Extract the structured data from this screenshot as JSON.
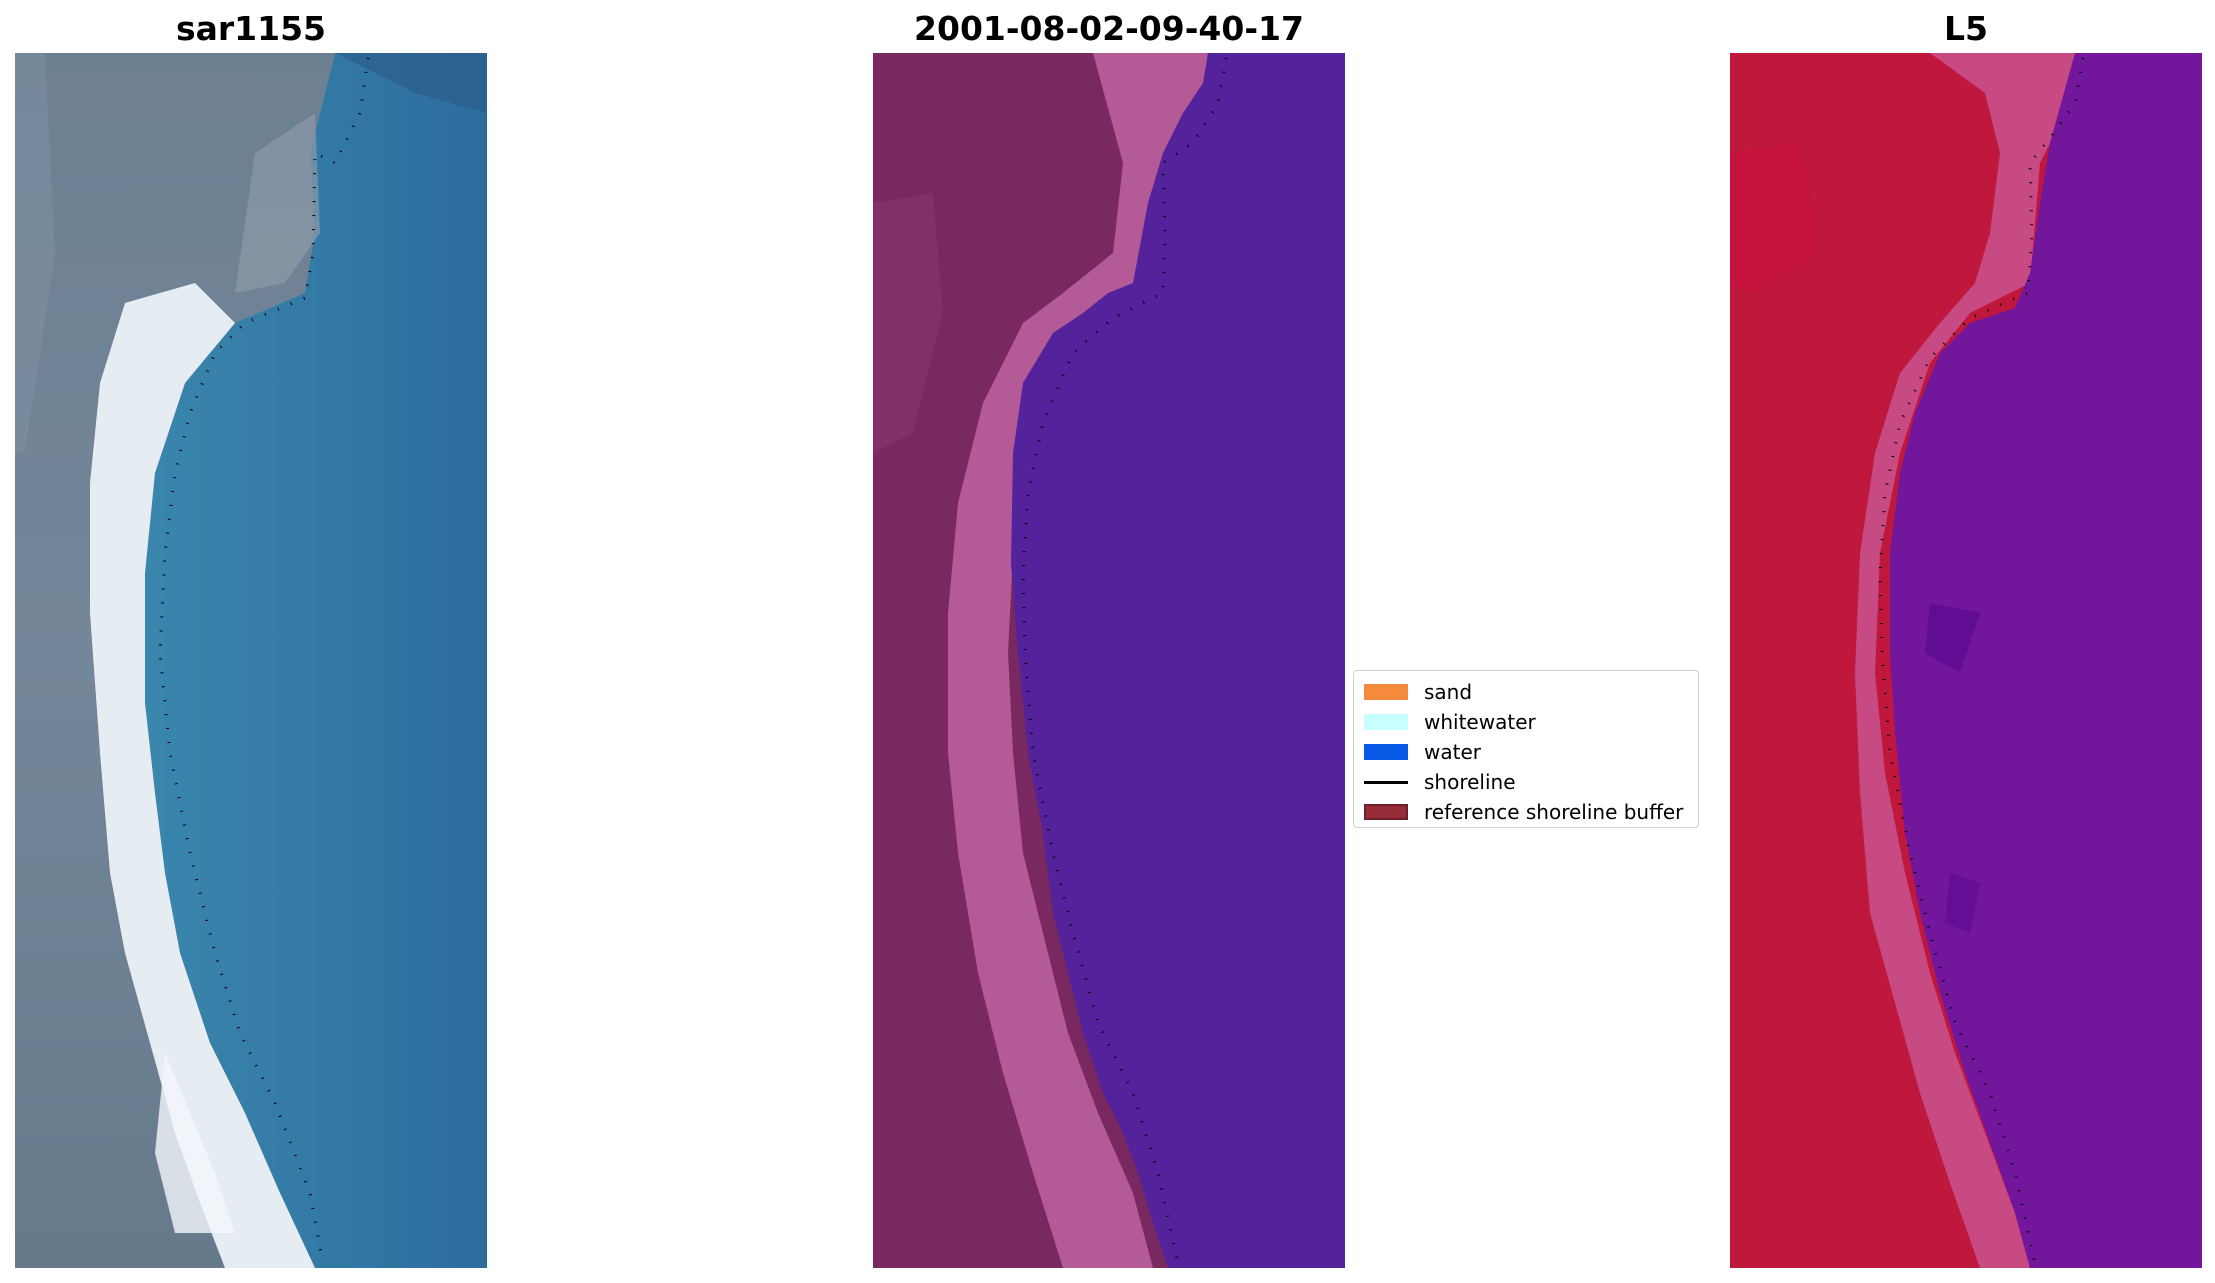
{
  "panels": [
    {
      "title": "sar1155"
    },
    {
      "title": "2001-08-02-09-40-17"
    },
    {
      "title": "L5"
    }
  ],
  "legend": {
    "items": [
      {
        "label": "sand",
        "color": "#f68a3c",
        "kind": "patch"
      },
      {
        "label": "whitewater",
        "color": "#c8ffff",
        "kind": "patch"
      },
      {
        "label": "water",
        "color": "#0a5ae8",
        "kind": "patch"
      },
      {
        "label": "shoreline",
        "color": "#000000",
        "kind": "line"
      },
      {
        "label": "reference shoreline buffer",
        "color": "#962d38",
        "kind": "patch"
      }
    ]
  },
  "colors": {
    "rgb_land": "#6c7f92",
    "rgb_sand": "#e8eef4",
    "rgb_water": "#2f74a6",
    "class_land": "#7a2860",
    "class_buffer": "#b45a96",
    "class_water": "#54229a",
    "index_land": "#c0173d",
    "index_buffer": "#c8508a",
    "index_water": "#72169c"
  }
}
